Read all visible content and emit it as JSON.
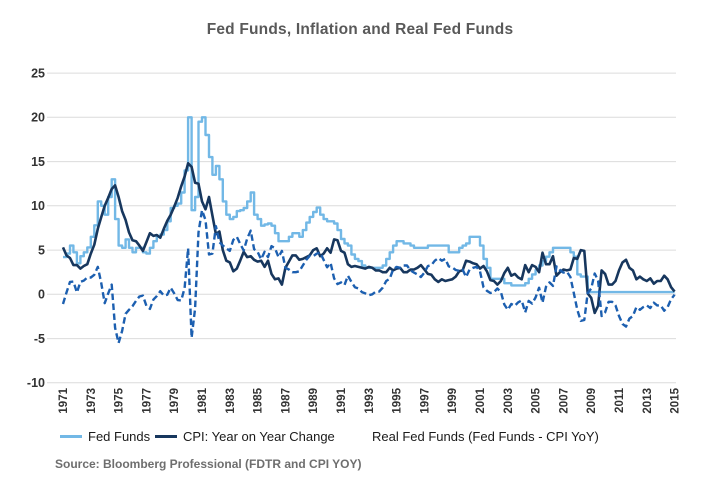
{
  "chart_data": {
    "type": "line",
    "title": "Fed Funds, Inflation and Real Fed Funds",
    "xlabel": "",
    "ylabel": "",
    "ylim": [
      -10,
      25
    ],
    "grid": "horizontal-only",
    "legend_position": "bottom",
    "y_ticks": [
      25,
      20,
      15,
      10,
      5,
      0,
      -5,
      -10
    ],
    "x_tick_years": [
      1971,
      1973,
      1975,
      1977,
      1979,
      1981,
      1983,
      1985,
      1987,
      1989,
      1991,
      1993,
      1995,
      1997,
      1999,
      2001,
      2003,
      2005,
      2007,
      2009,
      2011,
      2013,
      2015
    ],
    "x_start": 1971,
    "x_step_years": 0.25,
    "series": [
      {
        "name": "Fed Funds",
        "color": "#72B8E6",
        "style": "solid",
        "interp": "step",
        "values": [
          4.2,
          4.6,
          5.5,
          4.75,
          3.5,
          4.3,
          4.75,
          5.3,
          6.5,
          7.8,
          10.5,
          10.0,
          9.0,
          11.0,
          13.0,
          8.5,
          5.5,
          5.25,
          6.2,
          5.25,
          4.75,
          5.25,
          5.25,
          4.75,
          4.6,
          5.25,
          6.0,
          6.5,
          6.75,
          7.25,
          8.25,
          9.75,
          10.0,
          10.25,
          11.5,
          14.0,
          20.0,
          9.5,
          11.0,
          19.5,
          20.0,
          18.0,
          15.5,
          13.5,
          14.5,
          13.0,
          10.5,
          9.0,
          8.5,
          8.75,
          9.4,
          9.5,
          9.75,
          10.5,
          11.5,
          9.0,
          8.5,
          7.75,
          7.9,
          8.0,
          7.75,
          6.9,
          6.0,
          6.0,
          6.0,
          6.5,
          6.9,
          6.9,
          6.5,
          7.25,
          8.1,
          8.75,
          9.3,
          9.8,
          9.0,
          8.5,
          8.25,
          8.25,
          8.0,
          7.25,
          6.25,
          5.75,
          5.5,
          4.5,
          4.0,
          3.75,
          3.25,
          3.0,
          3.0,
          3.0,
          3.0,
          3.0,
          3.25,
          4.0,
          4.75,
          5.5,
          6.0,
          6.0,
          5.75,
          5.75,
          5.5,
          5.25,
          5.25,
          5.25,
          5.25,
          5.5,
          5.5,
          5.5,
          5.5,
          5.5,
          5.5,
          4.75,
          4.75,
          4.75,
          5.25,
          5.5,
          5.75,
          6.5,
          6.5,
          6.5,
          5.5,
          4.0,
          3.0,
          1.75,
          1.75,
          1.75,
          1.75,
          1.25,
          1.25,
          1.0,
          1.0,
          1.0,
          1.0,
          1.25,
          1.75,
          2.25,
          2.75,
          3.25,
          3.75,
          4.25,
          4.75,
          5.25,
          5.25,
          5.25,
          5.25,
          5.25,
          4.75,
          4.25,
          2.25,
          2.0,
          2.0,
          0.25,
          0.25,
          0.25,
          0.25,
          0.25,
          0.25,
          0.25,
          0.25,
          0.25,
          0.25,
          0.25,
          0.25,
          0.25,
          0.25,
          0.25,
          0.25,
          0.25,
          0.25,
          0.25,
          0.25,
          0.25,
          0.25,
          0.25,
          0.25,
          0.25,
          0.25
        ]
      },
      {
        "name": "CPI: Year on Year Change",
        "color": "#17375E",
        "style": "solid",
        "interp": "linear",
        "values": [
          5.3,
          4.4,
          4.1,
          3.3,
          3.3,
          2.9,
          3.2,
          3.4,
          4.6,
          5.6,
          7.4,
          8.7,
          10.0,
          10.9,
          11.9,
          12.3,
          11.0,
          9.4,
          8.4,
          7.0,
          6.1,
          6.0,
          5.5,
          4.9,
          5.9,
          6.9,
          6.6,
          6.7,
          6.4,
          7.4,
          8.3,
          9.0,
          9.9,
          10.9,
          12.2,
          13.3,
          14.8,
          14.4,
          12.6,
          12.5,
          10.5,
          9.6,
          11.0,
          8.9,
          6.8,
          7.1,
          5.0,
          3.8,
          3.6,
          2.6,
          2.9,
          3.8,
          4.8,
          4.2,
          4.3,
          3.9,
          3.7,
          3.8,
          3.1,
          3.8,
          2.3,
          1.7,
          1.8,
          1.1,
          3.0,
          3.7,
          4.4,
          4.4,
          3.9,
          4.0,
          4.2,
          4.4,
          5.0,
          5.2,
          4.3,
          4.6,
          5.2,
          4.7,
          6.2,
          6.1,
          4.9,
          4.7,
          3.4,
          3.1,
          3.2,
          3.1,
          3.0,
          2.9,
          3.1,
          3.0,
          2.7,
          2.7,
          2.5,
          2.5,
          3.0,
          2.7,
          2.9,
          3.0,
          2.5,
          2.5,
          2.8,
          2.8,
          3.0,
          3.3,
          2.8,
          2.3,
          2.2,
          1.7,
          1.4,
          1.7,
          1.5,
          1.6,
          1.7,
          2.0,
          2.6,
          2.7,
          3.8,
          3.7,
          3.5,
          3.4,
          2.9,
          3.2,
          2.6,
          1.6,
          1.5,
          1.1,
          1.5,
          2.4,
          3.0,
          2.1,
          2.3,
          1.9,
          1.7,
          3.3,
          2.5,
          3.3,
          3.1,
          2.5,
          4.7,
          3.4,
          3.4,
          4.3,
          2.1,
          2.5,
          2.8,
          2.7,
          2.8,
          4.1,
          4.0,
          5.0,
          4.9,
          0.1,
          -0.4,
          -2.1,
          -1.3,
          2.7,
          2.3,
          1.1,
          1.1,
          1.5,
          2.7,
          3.6,
          3.9,
          3.0,
          2.7,
          1.7,
          2.0,
          1.7,
          1.5,
          1.8,
          1.2,
          1.5,
          1.5,
          2.1,
          1.7,
          0.8,
          0.3
        ]
      },
      {
        "name": "Real Fed Funds (Fed Funds - CPI YoY)",
        "color": "#1C5FB0",
        "style": "dashed",
        "interp": "linear",
        "values": [
          -1.1,
          0.2,
          1.4,
          1.45,
          0.2,
          1.4,
          1.55,
          1.9,
          1.9,
          2.2,
          3.1,
          1.3,
          -1.0,
          0.1,
          1.1,
          -3.8,
          -5.5,
          -4.15,
          -2.2,
          -1.75,
          -1.35,
          -0.75,
          -0.25,
          -0.15,
          -1.3,
          -1.65,
          -0.6,
          -0.2,
          0.35,
          -0.15,
          -0.05,
          0.75,
          0.1,
          -0.65,
          -0.7,
          0.7,
          5.2,
          -4.9,
          -1.6,
          7.0,
          9.5,
          8.4,
          4.5,
          4.6,
          7.7,
          5.9,
          5.5,
          5.2,
          4.9,
          6.15,
          6.5,
          5.7,
          4.95,
          6.3,
          7.2,
          5.1,
          4.8,
          3.95,
          4.8,
          4.2,
          5.45,
          5.2,
          4.2,
          4.9,
          3.0,
          2.8,
          2.5,
          2.5,
          2.6,
          3.25,
          3.9,
          4.35,
          4.3,
          4.6,
          4.7,
          3.9,
          3.05,
          3.55,
          1.8,
          1.15,
          1.35,
          1.05,
          2.1,
          1.4,
          0.8,
          0.65,
          0.25,
          0.1,
          -0.1,
          0.0,
          0.3,
          0.3,
          0.75,
          1.5,
          1.75,
          2.8,
          3.1,
          3.0,
          3.25,
          3.25,
          2.7,
          2.45,
          2.25,
          1.95,
          2.45,
          3.2,
          3.3,
          3.8,
          4.1,
          3.8,
          4.0,
          3.15,
          3.05,
          2.75,
          2.65,
          2.8,
          1.95,
          2.8,
          3.0,
          3.1,
          2.6,
          0.8,
          0.4,
          0.15,
          0.25,
          0.65,
          0.25,
          -1.15,
          -1.75,
          -1.1,
          -1.3,
          -0.9,
          -0.7,
          -2.05,
          -0.75,
          -1.05,
          -0.35,
          0.75,
          -0.95,
          0.85,
          1.35,
          0.95,
          3.15,
          2.75,
          2.45,
          2.55,
          1.95,
          0.15,
          -1.75,
          -3.0,
          -2.9,
          0.15,
          0.65,
          2.35,
          1.55,
          -2.45,
          -2.05,
          -0.85,
          -0.85,
          -1.25,
          -2.45,
          -3.35,
          -3.65,
          -2.75,
          -2.45,
          -1.45,
          -1.75,
          -1.45,
          -1.25,
          -1.55,
          -0.95,
          -1.25,
          -1.25,
          -1.85,
          -1.45,
          -0.55,
          -0.05
        ]
      }
    ]
  },
  "legend": {
    "items": [
      {
        "label": "Fed Funds"
      },
      {
        "label": "CPI: Year on Year Change"
      },
      {
        "label": "Real Fed Funds (Fed Funds - CPI YoY)"
      }
    ]
  },
  "source_note": "Source: Bloomberg Professional (FDTR and CPI YOY)",
  "colors": {
    "grid": "#DCDCDC",
    "title_text": "#595959",
    "tick_text": "#333333",
    "source_text": "#6E6E6E"
  }
}
